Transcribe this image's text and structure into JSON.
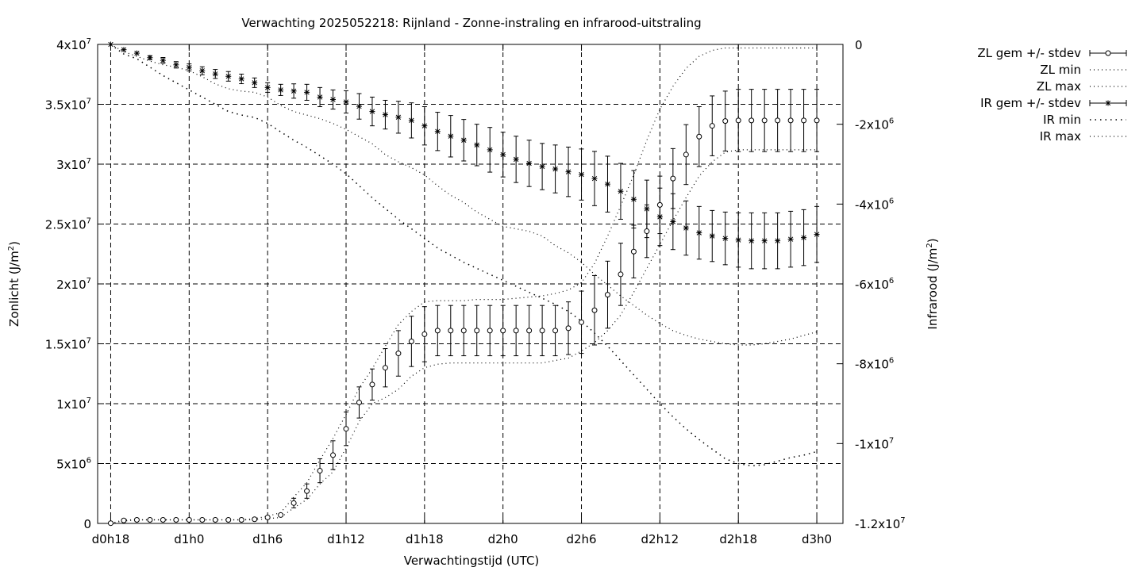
{
  "chart_data": {
    "type": "line",
    "title": "Verwachting 2025052218: Rijnland - Zonne-instraling en infrarood-uitstraling",
    "xlabel": "Verwachtingstijd (UTC)",
    "ylabel_left": {
      "text": "Zonlicht (J/m",
      "sup": "2",
      "close": ")"
    },
    "ylabel_right": {
      "text": "Infrarood (J/m",
      "sup": "2",
      "close": ")"
    },
    "x_range": [
      -1,
      56
    ],
    "y_left_range": [
      0,
      40000000
    ],
    "y_right_range": [
      -12000000,
      0
    ],
    "grid": true,
    "legend_position": "top-right-outside",
    "x_ticks": [
      {
        "x": 0,
        "label": "d0h18"
      },
      {
        "x": 6,
        "label": "d1h0"
      },
      {
        "x": 12,
        "label": "d1h6"
      },
      {
        "x": 18,
        "label": "d1h12"
      },
      {
        "x": 24,
        "label": "d1h18"
      },
      {
        "x": 30,
        "label": "d2h0"
      },
      {
        "x": 36,
        "label": "d2h6"
      },
      {
        "x": 42,
        "label": "d2h12"
      },
      {
        "x": 48,
        "label": "d2h18"
      },
      {
        "x": 54,
        "label": "d3h0"
      }
    ],
    "y_left_ticks": [
      {
        "v": 0,
        "base": "0",
        "exp": ""
      },
      {
        "v": 5000000,
        "base": "5x10",
        "exp": "6"
      },
      {
        "v": 10000000,
        "base": "1x10",
        "exp": "7"
      },
      {
        "v": 15000000,
        "base": "1.5x10",
        "exp": "7"
      },
      {
        "v": 20000000,
        "base": "2x10",
        "exp": "7"
      },
      {
        "v": 25000000,
        "base": "2.5x10",
        "exp": "7"
      },
      {
        "v": 30000000,
        "base": "3x10",
        "exp": "7"
      },
      {
        "v": 35000000,
        "base": "3.5x10",
        "exp": "7"
      },
      {
        "v": 40000000,
        "base": "4x10",
        "exp": "7"
      }
    ],
    "y_right_ticks": [
      {
        "v": 0,
        "base": "0",
        "exp": ""
      },
      {
        "v": -2000000,
        "base": "-2x10",
        "exp": "6"
      },
      {
        "v": -4000000,
        "base": "-4x10",
        "exp": "6"
      },
      {
        "v": -6000000,
        "base": "-6x10",
        "exp": "6"
      },
      {
        "v": -8000000,
        "base": "-8x10",
        "exp": "6"
      },
      {
        "v": -10000000,
        "base": "-1x10",
        "exp": "7"
      },
      {
        "v": -12000000,
        "base": "-1.2x10",
        "exp": "7"
      }
    ],
    "x": [
      0,
      1,
      2,
      3,
      4,
      5,
      6,
      7,
      8,
      9,
      10,
      11,
      12,
      13,
      14,
      15,
      16,
      17,
      18,
      19,
      20,
      21,
      22,
      23,
      24,
      25,
      26,
      27,
      28,
      29,
      30,
      31,
      32,
      33,
      34,
      35,
      36,
      37,
      38,
      39,
      40,
      41,
      42,
      43,
      44,
      45,
      46,
      47,
      48,
      49,
      50,
      51,
      52,
      53,
      54
    ],
    "series": [
      {
        "name": "ZL gem +/- stdev",
        "axis": "left",
        "marker": "circle",
        "mean": [
          0.02,
          0.25,
          0.3,
          0.3,
          0.3,
          0.3,
          0.3,
          0.3,
          0.3,
          0.3,
          0.3,
          0.35,
          0.5,
          0.7,
          1.7,
          2.7,
          4.4,
          5.7,
          7.9,
          10.1,
          11.6,
          13.0,
          14.2,
          15.2,
          15.8,
          16.1,
          16.1,
          16.1,
          16.1,
          16.1,
          16.1,
          16.1,
          16.1,
          16.1,
          16.1,
          16.3,
          16.8,
          17.8,
          19.1,
          20.8,
          22.7,
          24.4,
          26.6,
          28.8,
          30.8,
          32.3,
          33.2,
          33.6,
          33.65,
          33.65,
          33.65,
          33.65,
          33.65,
          33.65,
          33.65
        ],
        "stdev": [
          0,
          0,
          0,
          0,
          0,
          0,
          0,
          0,
          0,
          0,
          0,
          0,
          0.05,
          0.1,
          0.4,
          0.6,
          1.0,
          1.2,
          1.4,
          1.3,
          1.3,
          1.6,
          1.9,
          2.1,
          2.3,
          2.1,
          2.1,
          2.1,
          2.1,
          2.1,
          2.1,
          2.1,
          2.1,
          2.1,
          2.1,
          2.2,
          2.6,
          2.9,
          2.8,
          2.6,
          2.2,
          2.2,
          2.4,
          2.5,
          2.5,
          2.5,
          2.5,
          2.5,
          2.6,
          2.6,
          2.6,
          2.6,
          2.6,
          2.6,
          2.6
        ],
        "unit_scale": 1000000
      },
      {
        "name": "ZL min",
        "axis": "left",
        "style": "dotted",
        "values": [
          0,
          0.2,
          0.3,
          0.3,
          0.3,
          0.3,
          0.3,
          0.3,
          0.3,
          0.3,
          0.3,
          0.3,
          0.4,
          0.5,
          1.3,
          2.0,
          3.3,
          4.3,
          6.3,
          8.5,
          10.0,
          10.5,
          11.2,
          12.3,
          13.0,
          13.3,
          13.4,
          13.4,
          13.4,
          13.4,
          13.4,
          13.4,
          13.4,
          13.4,
          13.6,
          13.8,
          14.4,
          15.1,
          16.1,
          17.4,
          19.3,
          21.3,
          23.3,
          25.3,
          27.2,
          29.0,
          30.2,
          31.0,
          31.2,
          31.2,
          31.2,
          31.2,
          31.2,
          31.2,
          31.2
        ],
        "unit_scale": 1000000
      },
      {
        "name": "ZL max",
        "axis": "left",
        "style": "dotted",
        "values": [
          0,
          0.3,
          0.3,
          0.3,
          0.3,
          0.3,
          0.3,
          0.3,
          0.3,
          0.3,
          0.3,
          0.4,
          0.6,
          0.9,
          2.2,
          3.4,
          5.3,
          7.1,
          9.1,
          11.3,
          12.9,
          14.8,
          16.6,
          17.7,
          18.5,
          18.6,
          18.6,
          18.6,
          18.7,
          18.7,
          18.7,
          18.8,
          18.9,
          19.0,
          19.2,
          19.5,
          20.1,
          21.7,
          24.0,
          26.5,
          29.1,
          32.0,
          34.6,
          36.5,
          38.0,
          39.0,
          39.5,
          39.7,
          39.7,
          39.7,
          39.7,
          39.7,
          39.7,
          39.7,
          39.7
        ],
        "unit_scale": 1000000
      },
      {
        "name": "IR gem +/- stdev",
        "axis": "right",
        "marker": "asterisk",
        "mean": [
          0,
          -0.33,
          -0.55,
          -0.83,
          -1.0,
          -1.28,
          -1.44,
          -1.65,
          -1.85,
          -2.0,
          -2.16,
          -2.4,
          -2.7,
          -2.85,
          -2.92,
          -3.0,
          -3.3,
          -3.45,
          -3.6,
          -3.88,
          -4.2,
          -4.4,
          -4.56,
          -4.76,
          -5.1,
          -5.45,
          -5.75,
          -6.0,
          -6.3,
          -6.6,
          -6.9,
          -7.2,
          -7.45,
          -7.65,
          -7.8,
          -7.98,
          -8.15,
          -8.4,
          -8.75,
          -9.2,
          -9.7,
          -10.3,
          -10.8,
          -11.1,
          -11.5,
          -11.8,
          -12.0,
          -12.15,
          -12.25,
          -12.3,
          -12.3,
          -12.3,
          -12.2,
          -12.1,
          -11.9
        ],
        "stdev": [
          0,
          0,
          0,
          0.12,
          0.18,
          0.2,
          0.22,
          0.25,
          0.28,
          0.3,
          0.3,
          0.3,
          0.3,
          0.35,
          0.45,
          0.5,
          0.6,
          0.6,
          0.7,
          0.8,
          0.9,
          0.9,
          1.0,
          1.1,
          1.2,
          1.2,
          1.3,
          1.3,
          1.3,
          1.4,
          1.4,
          1.45,
          1.45,
          1.45,
          1.5,
          1.55,
          1.6,
          1.7,
          1.75,
          1.75,
          1.8,
          1.8,
          1.8,
          1.75,
          1.7,
          1.65,
          1.6,
          1.65,
          1.7,
          1.75,
          1.75,
          1.75,
          1.75,
          1.75,
          1.75
        ],
        "unit_scale": 400000
      },
      {
        "name": "IR min",
        "axis": "right",
        "style": "dotted-sparse",
        "values": [
          0,
          -0.4,
          -0.6,
          -0.95,
          -1.3,
          -1.6,
          -1.9,
          -2.2,
          -2.5,
          -2.8,
          -2.95,
          -3.05,
          -3.3,
          -3.65,
          -4.0,
          -4.3,
          -4.65,
          -5.0,
          -5.4,
          -5.9,
          -6.4,
          -6.85,
          -7.3,
          -7.7,
          -8.1,
          -8.5,
          -8.8,
          -9.1,
          -9.35,
          -9.6,
          -9.85,
          -10.1,
          -10.35,
          -10.6,
          -10.85,
          -11.15,
          -11.55,
          -12.05,
          -12.6,
          -13.2,
          -13.8,
          -14.4,
          -15.0,
          -15.55,
          -16.05,
          -16.5,
          -16.9,
          -17.3,
          -17.5,
          -17.6,
          -17.55,
          -17.4,
          -17.25,
          -17.15,
          -17.0
        ],
        "unit_scale": 600000
      },
      {
        "name": "IR max",
        "axis": "right",
        "style": "dotted",
        "values": [
          0,
          -0.3,
          -0.5,
          -0.7,
          -0.85,
          -0.95,
          -1.1,
          -1.35,
          -1.65,
          -1.85,
          -1.95,
          -2.0,
          -2.2,
          -2.55,
          -2.8,
          -2.95,
          -3.1,
          -3.3,
          -3.55,
          -3.85,
          -4.15,
          -4.6,
          -4.9,
          -5.15,
          -5.45,
          -5.9,
          -6.3,
          -6.6,
          -7.0,
          -7.3,
          -7.6,
          -7.7,
          -7.8,
          -8.0,
          -8.4,
          -8.7,
          -9.1,
          -9.6,
          -10.05,
          -10.5,
          -10.9,
          -11.3,
          -11.65,
          -11.95,
          -12.15,
          -12.3,
          -12.4,
          -12.5,
          -12.55,
          -12.55,
          -12.5,
          -12.4,
          -12.3,
          -12.15,
          -12.0
        ],
        "unit_scale": 600000
      }
    ],
    "legend": [
      {
        "label": "ZL gem +/- stdev",
        "style": "errorbar-circle"
      },
      {
        "label": "ZL min",
        "style": "dotted"
      },
      {
        "label": "ZL max",
        "style": "dotted"
      },
      {
        "label": "IR gem +/- stdev",
        "style": "errorbar-asterisk"
      },
      {
        "label": "IR min",
        "style": "dotted-sparse"
      },
      {
        "label": "IR max",
        "style": "dotted"
      }
    ]
  }
}
